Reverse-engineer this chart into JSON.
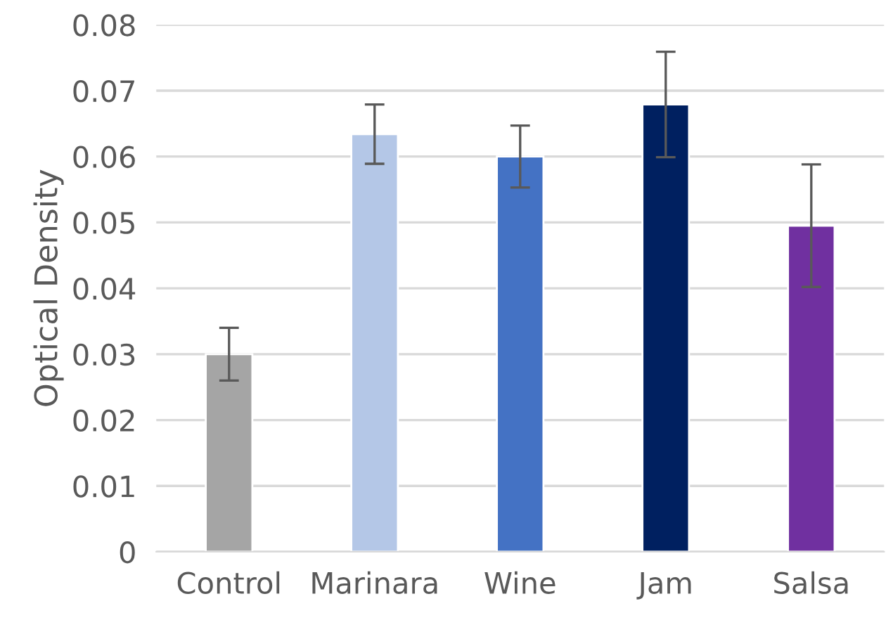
{
  "chart_data": {
    "type": "bar",
    "ylabel": "Optical Density",
    "categories": [
      "Control",
      "Marinara",
      "Wine",
      "Jam",
      "Salsa"
    ],
    "values": [
      0.03,
      0.0634,
      0.06,
      0.0679,
      0.0495
    ],
    "errors": [
      0.004,
      0.0045,
      0.0047,
      0.008,
      0.0093
    ],
    "colors": [
      "#a5a5a5",
      "#b4c7e7",
      "#4472c4",
      "#002060",
      "#7030a0"
    ],
    "ylim": [
      0,
      0.08
    ],
    "yticks": [
      0,
      0.01,
      0.02,
      0.03,
      0.04,
      0.05,
      0.06,
      0.07,
      0.08
    ],
    "grid": "y",
    "legend": false
  }
}
